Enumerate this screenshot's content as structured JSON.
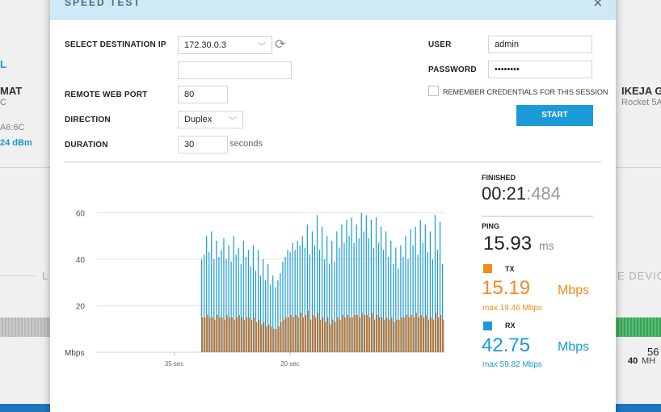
{
  "background": {
    "left_l": "L",
    "left_mat": "MAT",
    "left_c": "C",
    "left_mac": "A6:6C",
    "left_signal": "24 dBm",
    "left_section": "L",
    "right_name": "IKEJA G",
    "right_model": "Rocket 5A",
    "right_section": "E DEVIC",
    "right_num": "56",
    "right_mhz_value": "40",
    "right_mhz_unit": "MH"
  },
  "modal": {
    "title": "SPEED TEST",
    "close_icon": "close-icon",
    "form": {
      "dest_ip_label": "SELECT DESTINATION IP",
      "dest_ip_value": "172.30.0.3",
      "dest_ip_extra_value": "",
      "port_label": "REMOTE WEB PORT",
      "port_value": "80",
      "direction_label": "DIRECTION",
      "direction_value": "Duplex",
      "duration_label": "DURATION",
      "duration_value": "30",
      "duration_unit": "seconds",
      "user_label": "USER",
      "user_value": "admin",
      "password_label": "PASSWORD",
      "password_value": "••••••••",
      "remember_label": "REMEMBER CREDENTIALS FOR THIS SESSION",
      "remember_checked": false,
      "start_label": "START"
    },
    "stats": {
      "finished_label": "FINISHED",
      "finished_main": "00:21",
      "finished_sep": ":",
      "finished_ms": "484",
      "ping_label": "PING",
      "ping_value": "15.93",
      "ping_unit": "ms",
      "tx_label": "TX",
      "tx_value": "15.19",
      "tx_unit": "Mbps",
      "tx_max": "max 19.46 Mbps",
      "rx_label": "RX",
      "rx_value": "42.75",
      "rx_unit": "Mbps",
      "rx_max": "max 59.82 Mbps",
      "tx_color": "#f28a1e",
      "rx_color": "#1a9ad6"
    }
  },
  "chart_data": {
    "type": "bar",
    "title": "",
    "ylabel": "Mbps",
    "xlabel": "",
    "ylim": [
      0,
      65
    ],
    "yticks": [
      20,
      40,
      60
    ],
    "xticks": [
      {
        "label": "35 sec",
        "t": 35
      },
      {
        "label": "20 sec",
        "t": 20
      }
    ],
    "x_range_sec": [
      45,
      0
    ],
    "series": [
      {
        "name": "RX",
        "color": "#1a9ad6",
        "values": [
          40,
          42,
          50,
          43,
          52,
          40,
          48,
          41,
          44,
          49,
          40,
          46,
          39,
          50,
          42,
          45,
          38,
          48,
          41,
          44,
          37,
          46,
          35,
          44,
          33,
          40,
          31,
          38,
          29,
          33,
          28,
          31,
          34,
          39,
          41,
          44,
          43,
          47,
          44,
          48,
          46,
          50,
          45,
          55,
          42,
          52,
          46,
          59,
          44,
          54,
          40,
          50,
          38,
          48,
          39,
          52,
          45,
          55,
          47,
          57,
          50,
          58,
          47,
          55,
          49,
          60,
          52,
          59,
          49,
          57,
          45,
          58,
          47,
          54,
          44,
          52,
          41,
          48,
          38,
          45,
          36,
          46,
          41,
          50,
          40,
          53,
          46,
          54,
          42,
          57,
          47,
          55,
          43,
          52,
          40,
          59,
          44,
          56,
          38
        ]
      },
      {
        "name": "TX",
        "color": "#b8773a",
        "values": [
          15,
          15,
          16,
          15,
          15,
          14,
          16,
          15,
          15,
          14,
          16,
          15,
          15,
          14,
          15,
          16,
          15,
          14,
          15,
          15,
          14,
          15,
          13,
          14,
          12,
          13,
          11,
          12,
          11,
          10,
          10,
          11,
          13,
          14,
          15,
          15,
          16,
          15,
          16,
          15,
          17,
          15,
          16,
          18,
          14,
          16,
          15,
          17,
          14,
          15,
          13,
          15,
          12,
          14,
          13,
          15,
          14,
          16,
          15,
          16,
          15,
          15,
          16,
          16,
          15,
          17,
          16,
          16,
          15,
          17,
          14,
          16,
          15,
          15,
          14,
          15,
          14,
          15,
          13,
          14,
          14,
          15,
          15,
          16,
          15,
          16,
          15,
          17,
          15,
          16,
          15,
          16,
          14,
          15,
          14,
          17,
          15,
          16,
          14
        ]
      }
    ]
  }
}
